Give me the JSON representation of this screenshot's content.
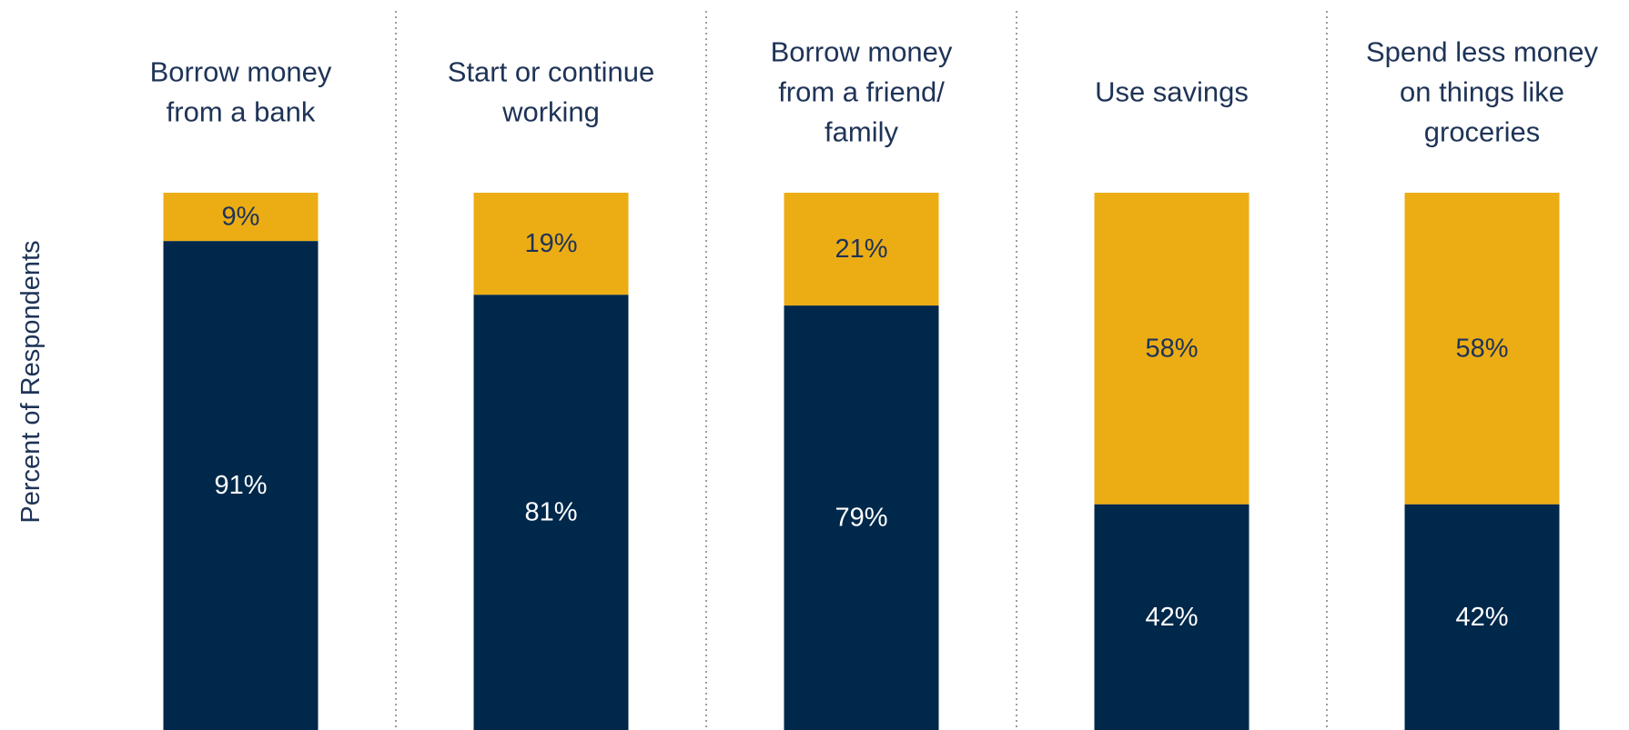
{
  "chart_data": {
    "type": "bar",
    "stacked": true,
    "ylabel": "Percent of Respondents",
    "ylim": [
      0,
      100
    ],
    "grid": false,
    "categories": [
      "Borrow money\nfrom a bank",
      "Start or continue\nworking",
      "Borrow money\nfrom a friend/\nfamily",
      "Use savings",
      "Spend less money\non things like\ngroceries"
    ],
    "series": [
      {
        "values": [
          91,
          81,
          79,
          42,
          42
        ],
        "labels": [
          "91%",
          "81%",
          "79%",
          "42%",
          "42%"
        ]
      },
      {
        "values": [
          9,
          19,
          21,
          58,
          58
        ],
        "labels": [
          "9%",
          "19%",
          "21%",
          "58%",
          "58%"
        ]
      }
    ],
    "colors": {
      "bottom": "#00284b",
      "top": "#ecad14",
      "bottom_text": "#ffffff",
      "top_text": "#1e3357"
    }
  }
}
